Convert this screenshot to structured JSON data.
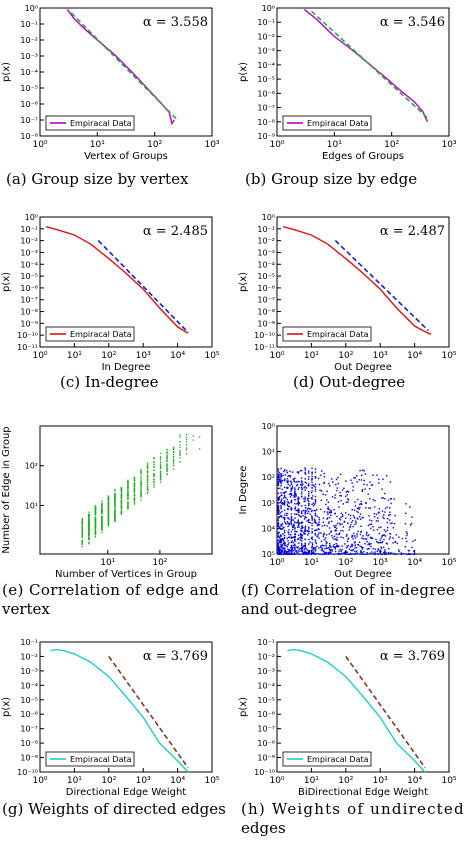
{
  "panels": [
    {
      "id": "a",
      "caption": "(a) Group size by vertex",
      "alpha_text": "α = 3.558",
      "legend": "Empiracal Data",
      "chart_data": {
        "type": "line",
        "xlabel": "Vertex of Groups",
        "ylabel": "p(x)",
        "xscale": "log",
        "yscale": "log",
        "xlim": [
          1,
          1000
        ],
        "ylim": [
          1e-08,
          1
        ],
        "xticks": [
          "10⁰",
          "10¹",
          "10²",
          "10³"
        ],
        "yticks": [
          "10⁰",
          "10⁻¹",
          "10⁻²",
          "10⁻³",
          "10⁻⁴",
          "10⁻⁵",
          "10⁻⁶",
          "10⁻⁷",
          "10⁻⁸"
        ],
        "series": [
          {
            "name": "Empiracal Data",
            "color": "#c000c0",
            "style": "solid",
            "x": [
              3,
              4,
              6,
              10,
              20,
              40,
              70,
              120,
              180,
              200,
              220
            ],
            "y": [
              0.8,
              0.2,
              0.05,
              0.01,
              0.0012,
              0.0001,
              1.2e-05,
              1.5e-06,
              3e-07,
              6e-08,
              1e-07
            ]
          },
          {
            "name": "",
            "color": "#22aa44",
            "style": "dashed",
            "x": [
              3.5,
              250
            ],
            "y": [
              0.5,
              1e-07
            ]
          }
        ]
      }
    },
    {
      "id": "b",
      "caption": "(b) Group size by edge",
      "alpha_text": "α = 3.546",
      "legend": "Empiracal Data",
      "chart_data": {
        "type": "line",
        "xlabel": "Edges of Groups",
        "ylabel": "p(x)",
        "xscale": "log",
        "yscale": "log",
        "xlim": [
          1,
          1000
        ],
        "ylim": [
          1e-09,
          1
        ],
        "xticks": [
          "10⁰",
          "10¹",
          "10²",
          "10³"
        ],
        "yticks": [
          "10⁰",
          "10⁻¹",
          "10⁻²",
          "10⁻³",
          "10⁻⁴",
          "10⁻⁵",
          "10⁻⁶",
          "10⁻⁷",
          "10⁻⁸",
          "10⁻⁹"
        ],
        "series": [
          {
            "name": "Empiracal Data",
            "color": "#c000c0",
            "style": "solid",
            "x": [
              3,
              5,
              10,
              20,
              40,
              80,
              150,
              250,
              350,
              420
            ],
            "y": [
              0.8,
              0.15,
              0.01,
              0.0012,
              0.00012,
              1.2e-05,
              1.3e-06,
              2.5e-07,
              5e-08,
              1e-08
            ]
          },
          {
            "name": "",
            "color": "#22aa44",
            "style": "dashed",
            "x": [
              4,
              450
            ],
            "y": [
              0.6,
              1.5e-08
            ]
          }
        ]
      }
    },
    {
      "id": "c",
      "caption": "(c) In-degree",
      "alpha_text": "α = 2.485",
      "legend": "Empiracal Data",
      "chart_data": {
        "type": "line",
        "xlabel": "In Degree",
        "ylabel": "p(x)",
        "xscale": "log",
        "yscale": "log",
        "xlim": [
          1,
          100000
        ],
        "ylim": [
          1e-11,
          1
        ],
        "xticks": [
          "10⁰",
          "10¹",
          "10²",
          "10³",
          "10⁴",
          "10⁵"
        ],
        "yticks": [
          "10⁰",
          "10⁻¹",
          "10⁻²",
          "10⁻³",
          "10⁻⁴",
          "10⁻⁵",
          "10⁻⁶",
          "10⁻⁷",
          "10⁻⁸",
          "10⁻⁹",
          "10⁻¹⁰",
          "10⁻¹¹"
        ],
        "series": [
          {
            "name": "Empiracal Data",
            "color": "#dd1111",
            "style": "solid",
            "x": [
              1.5,
              3,
              10,
              30,
              100,
              300,
              1000,
              3000,
              10000,
              20000
            ],
            "y": [
              0.15,
              0.09,
              0.03,
              0.005,
              0.0003,
              2e-05,
              8e-07,
              2e-08,
              5e-10,
              1.5e-10
            ]
          },
          {
            "name": "",
            "color": "#1122bb",
            "style": "dashed",
            "x": [
              50,
              20000
            ],
            "y": [
              0.01,
              1.8e-10
            ]
          }
        ]
      }
    },
    {
      "id": "d",
      "caption": "(d) Out-degree",
      "alpha_text": "α = 2.487",
      "legend": "Empiracal Data",
      "chart_data": {
        "type": "line",
        "xlabel": "Out Degree",
        "ylabel": "p(x)",
        "xscale": "log",
        "yscale": "log",
        "xlim": [
          1,
          100000
        ],
        "ylim": [
          1e-11,
          1
        ],
        "xticks": [
          "10⁰",
          "10¹",
          "10²",
          "10³",
          "10⁴",
          "10⁵"
        ],
        "yticks": [
          "10⁰",
          "10⁻¹",
          "10⁻²",
          "10⁻³",
          "10⁻⁴",
          "10⁻⁵",
          "10⁻⁶",
          "10⁻⁷",
          "10⁻⁸",
          "10⁻⁹",
          "10⁻¹⁰",
          "10⁻¹¹"
        ],
        "series": [
          {
            "name": "Empiracal Data",
            "color": "#dd1111",
            "style": "solid",
            "x": [
              1.5,
              3,
              10,
              30,
              100,
              300,
              1000,
              3000,
              10000,
              20000,
              30000
            ],
            "y": [
              0.15,
              0.09,
              0.03,
              0.005,
              0.0003,
              2e-05,
              8e-07,
              2e-08,
              6e-10,
              2e-10,
              1.2e-10
            ]
          },
          {
            "name": "",
            "color": "#1122bb",
            "style": "dashed",
            "x": [
              50,
              25000
            ],
            "y": [
              0.01,
              2.5e-10
            ]
          }
        ]
      }
    },
    {
      "id": "e",
      "caption_lines": [
        "(e) Correlation of edge and",
        "vertex"
      ],
      "chart_data": {
        "type": "scatter",
        "xlabel": "Number of Vertices in Group",
        "ylabel": "Number of Edge in Group",
        "xscale": "log",
        "yscale": "log",
        "xlim": [
          0.5,
          1000
        ],
        "ylim": [
          0.6,
          1000
        ],
        "xticks": [
          "10¹",
          "10²"
        ],
        "yticks": [
          "10¹",
          "10²"
        ],
        "color": "#22aa22",
        "trend": {
          "x": [
            3,
            600
          ],
          "y": [
            2,
            700
          ],
          "spread": 0.35
        }
      }
    },
    {
      "id": "f",
      "caption_lines": [
        "(f) Correlation of in-degree",
        "and out-degree"
      ],
      "chart_data": {
        "type": "scatter",
        "xlabel": "Out Degree",
        "ylabel": "In Degree",
        "xscale": "log",
        "yscale": "log",
        "xlim": [
          1,
          100000
        ],
        "ylim": [
          1,
          100000
        ],
        "xticks": [
          "10⁰",
          "10¹",
          "10²",
          "10³",
          "10⁴",
          "10⁵"
        ],
        "yticks": [
          "10⁰",
          "10¹",
          "10²",
          "10³",
          "10⁴",
          "10⁵"
        ],
        "color": "#0000ee"
      }
    },
    {
      "id": "g",
      "caption": "(g) Weights of directed edges",
      "alpha_text": "α = 3.769",
      "legend": "Empiracal Data",
      "chart_data": {
        "type": "line",
        "xlabel": "Directional Edge Weight",
        "ylabel": "p(x)",
        "xscale": "log",
        "yscale": "log",
        "xlim": [
          1,
          100000
        ],
        "ylim": [
          1e-10,
          0.1
        ],
        "xticks": [
          "10⁰",
          "10¹",
          "10²",
          "10³",
          "10⁴",
          "10⁵"
        ],
        "yticks": [
          "10⁻¹",
          "10⁻²",
          "10⁻³",
          "10⁻⁴",
          "10⁻⁵",
          "10⁻⁶",
          "10⁻⁷",
          "10⁻⁸",
          "10⁻⁹",
          "10⁻¹⁰"
        ],
        "series": [
          {
            "name": "Empiracal Data",
            "color": "#22cccc",
            "style": "solid",
            "x": [
              2,
              3,
              5,
              10,
              30,
              100,
              300,
              1000,
              3000,
              10000,
              20000
            ],
            "y": [
              0.025,
              0.03,
              0.025,
              0.015,
              0.004,
              0.0004,
              2e-05,
              6e-07,
              1e-08,
              6e-10,
              1e-10
            ]
          },
          {
            "name": "",
            "color": "#7a3a22",
            "style": "dashed",
            "x": [
              100,
              20000
            ],
            "y": [
              0.01,
              2e-10
            ]
          }
        ]
      }
    },
    {
      "id": "h",
      "caption_lines": [
        "(h) Weights of undirected",
        "edges"
      ],
      "alpha_text": "α = 3.769",
      "legend": "Empiracal Data",
      "chart_data": {
        "type": "line",
        "xlabel": "BiDirectional Edge Weight",
        "ylabel": "p(x)",
        "xscale": "log",
        "yscale": "log",
        "xlim": [
          1,
          100000
        ],
        "ylim": [
          1e-10,
          0.1
        ],
        "xticks": [
          "10⁰",
          "10¹",
          "10²",
          "10³",
          "10⁴",
          "10⁵"
        ],
        "yticks": [
          "10⁻¹",
          "10⁻²",
          "10⁻³",
          "10⁻⁴",
          "10⁻⁵",
          "10⁻⁶",
          "10⁻⁷",
          "10⁻⁸",
          "10⁻⁹",
          "10⁻¹⁰"
        ],
        "series": [
          {
            "name": "Empiracal Data",
            "color": "#22cccc",
            "style": "solid",
            "x": [
              2,
              3,
              5,
              10,
              30,
              100,
              300,
              1000,
              3000,
              10000,
              20000
            ],
            "y": [
              0.025,
              0.03,
              0.025,
              0.015,
              0.004,
              0.0004,
              2e-05,
              6e-07,
              1e-08,
              6e-10,
              1e-10
            ]
          },
          {
            "name": "",
            "color": "#7a3a22",
            "style": "dashed",
            "x": [
              100,
              20000
            ],
            "y": [
              0.01,
              2e-10
            ]
          }
        ]
      }
    }
  ]
}
